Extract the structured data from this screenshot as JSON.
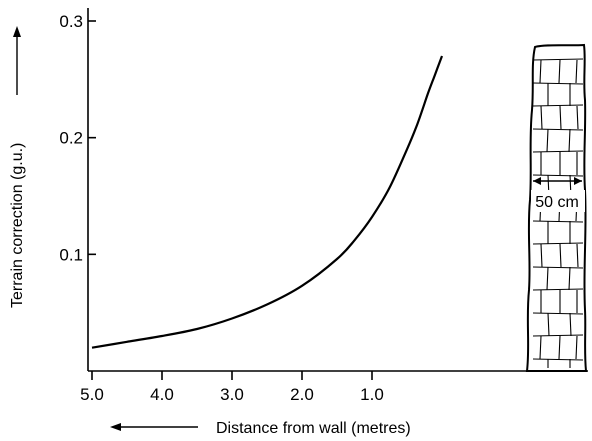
{
  "chart_data": {
    "type": "line",
    "xlabel": "Distance from wall (metres)",
    "ylabel": "Terrain correction (g.u.)",
    "x_direction": "reversed",
    "xlim": [
      5.0,
      -0.55
    ],
    "ylim": [
      0.0,
      0.31
    ],
    "x_ticks": [
      5.0,
      4.0,
      3.0,
      2.0,
      1.0
    ],
    "x_tick_labels": [
      "5.0",
      "4.0",
      "3.0",
      "2.0",
      "1.0"
    ],
    "y_ticks": [
      0.1,
      0.2,
      0.3
    ],
    "y_tick_labels": [
      "0.1",
      "0.2",
      "0.3"
    ],
    "grid": false,
    "series": [
      {
        "x": [
          5.0,
          4.5,
          4.0,
          3.5,
          3.0,
          2.5,
          2.0,
          1.5,
          1.25,
          1.0,
          0.75,
          0.5,
          0.35,
          0.2,
          0.1,
          0.0
        ],
        "y": [
          0.02,
          0.025,
          0.03,
          0.036,
          0.045,
          0.057,
          0.073,
          0.096,
          0.112,
          0.132,
          0.157,
          0.19,
          0.212,
          0.238,
          0.254,
          0.27
        ]
      }
    ],
    "annotations": {
      "wall_label": "50 cm"
    }
  }
}
